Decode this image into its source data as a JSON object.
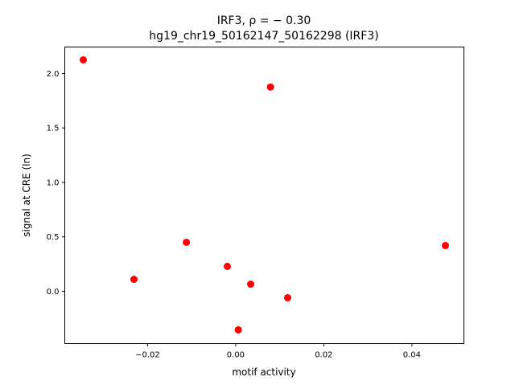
{
  "chart_data": {
    "type": "scatter",
    "title_line1": "IRF3, ρ = − 0.30",
    "title_line2": "hg19_chr19_50162147_50162298 (IRF3)",
    "xlabel": "motif activity",
    "ylabel": "signal at CRE (ln)",
    "xlim": [
      -0.0388,
      0.0518
    ],
    "ylim": [
      -0.48,
      2.243
    ],
    "xticks": [
      -0.02,
      0.0,
      0.02,
      0.04
    ],
    "xtick_labels": [
      "−0.02",
      "0.00",
      "0.02",
      "0.04"
    ],
    "yticks": [
      0.0,
      0.5,
      1.0,
      1.5,
      2.0
    ],
    "ytick_labels": [
      "0.0",
      "0.5",
      "1.0",
      "1.5",
      "2.0"
    ],
    "grid": false,
    "marker_color": "#ff0000",
    "points": [
      {
        "x": -0.0346,
        "y": 2.125
      },
      {
        "x": 0.0079,
        "y": 1.875
      },
      {
        "x": -0.0112,
        "y": 0.45
      },
      {
        "x": -0.0231,
        "y": 0.11
      },
      {
        "x": -0.0019,
        "y": 0.229
      },
      {
        "x": 0.0034,
        "y": 0.066
      },
      {
        "x": 0.0118,
        "y": -0.059
      },
      {
        "x": 0.0006,
        "y": -0.354
      },
      {
        "x": 0.0476,
        "y": 0.42
      }
    ]
  }
}
